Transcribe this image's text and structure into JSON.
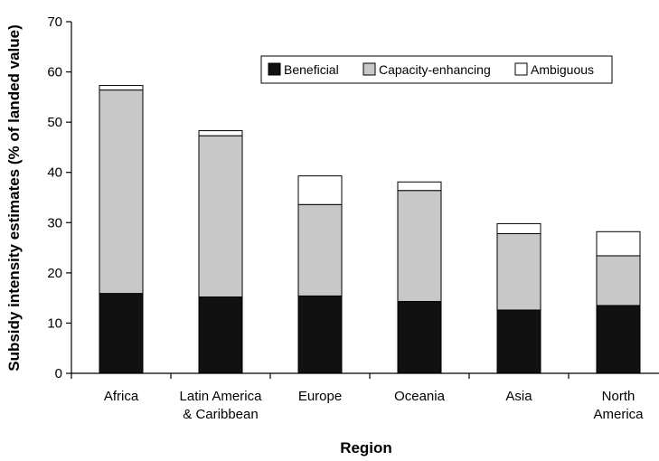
{
  "chart_data": {
    "type": "bar",
    "stacked": true,
    "categories": [
      [
        "Africa"
      ],
      [
        "Latin America",
        "& Caribbean"
      ],
      [
        "Europe"
      ],
      [
        "Oceania"
      ],
      [
        "Asia"
      ],
      [
        "North",
        "America"
      ]
    ],
    "series": [
      {
        "name": "Beneficial",
        "color": "#111111",
        "values": [
          15.9,
          15.2,
          15.4,
          14.3,
          12.6,
          13.5
        ]
      },
      {
        "name": "Capacity-enhancing",
        "color": "#c8c8c8",
        "values": [
          40.5,
          32.1,
          18.2,
          22.1,
          15.2,
          9.9
        ]
      },
      {
        "name": "Ambiguous",
        "color": "#ffffff",
        "values": [
          0.9,
          1.0,
          5.7,
          1.7,
          2.0,
          4.8
        ]
      }
    ],
    "title": "",
    "xlabel": "Region",
    "ylabel": "Subsidy intensity estimates (% of landed value)",
    "ylim": [
      0,
      70
    ],
    "yticks": [
      0,
      10,
      20,
      30,
      40,
      50,
      60,
      70
    ],
    "grid": false,
    "legend_position": "top-right"
  }
}
